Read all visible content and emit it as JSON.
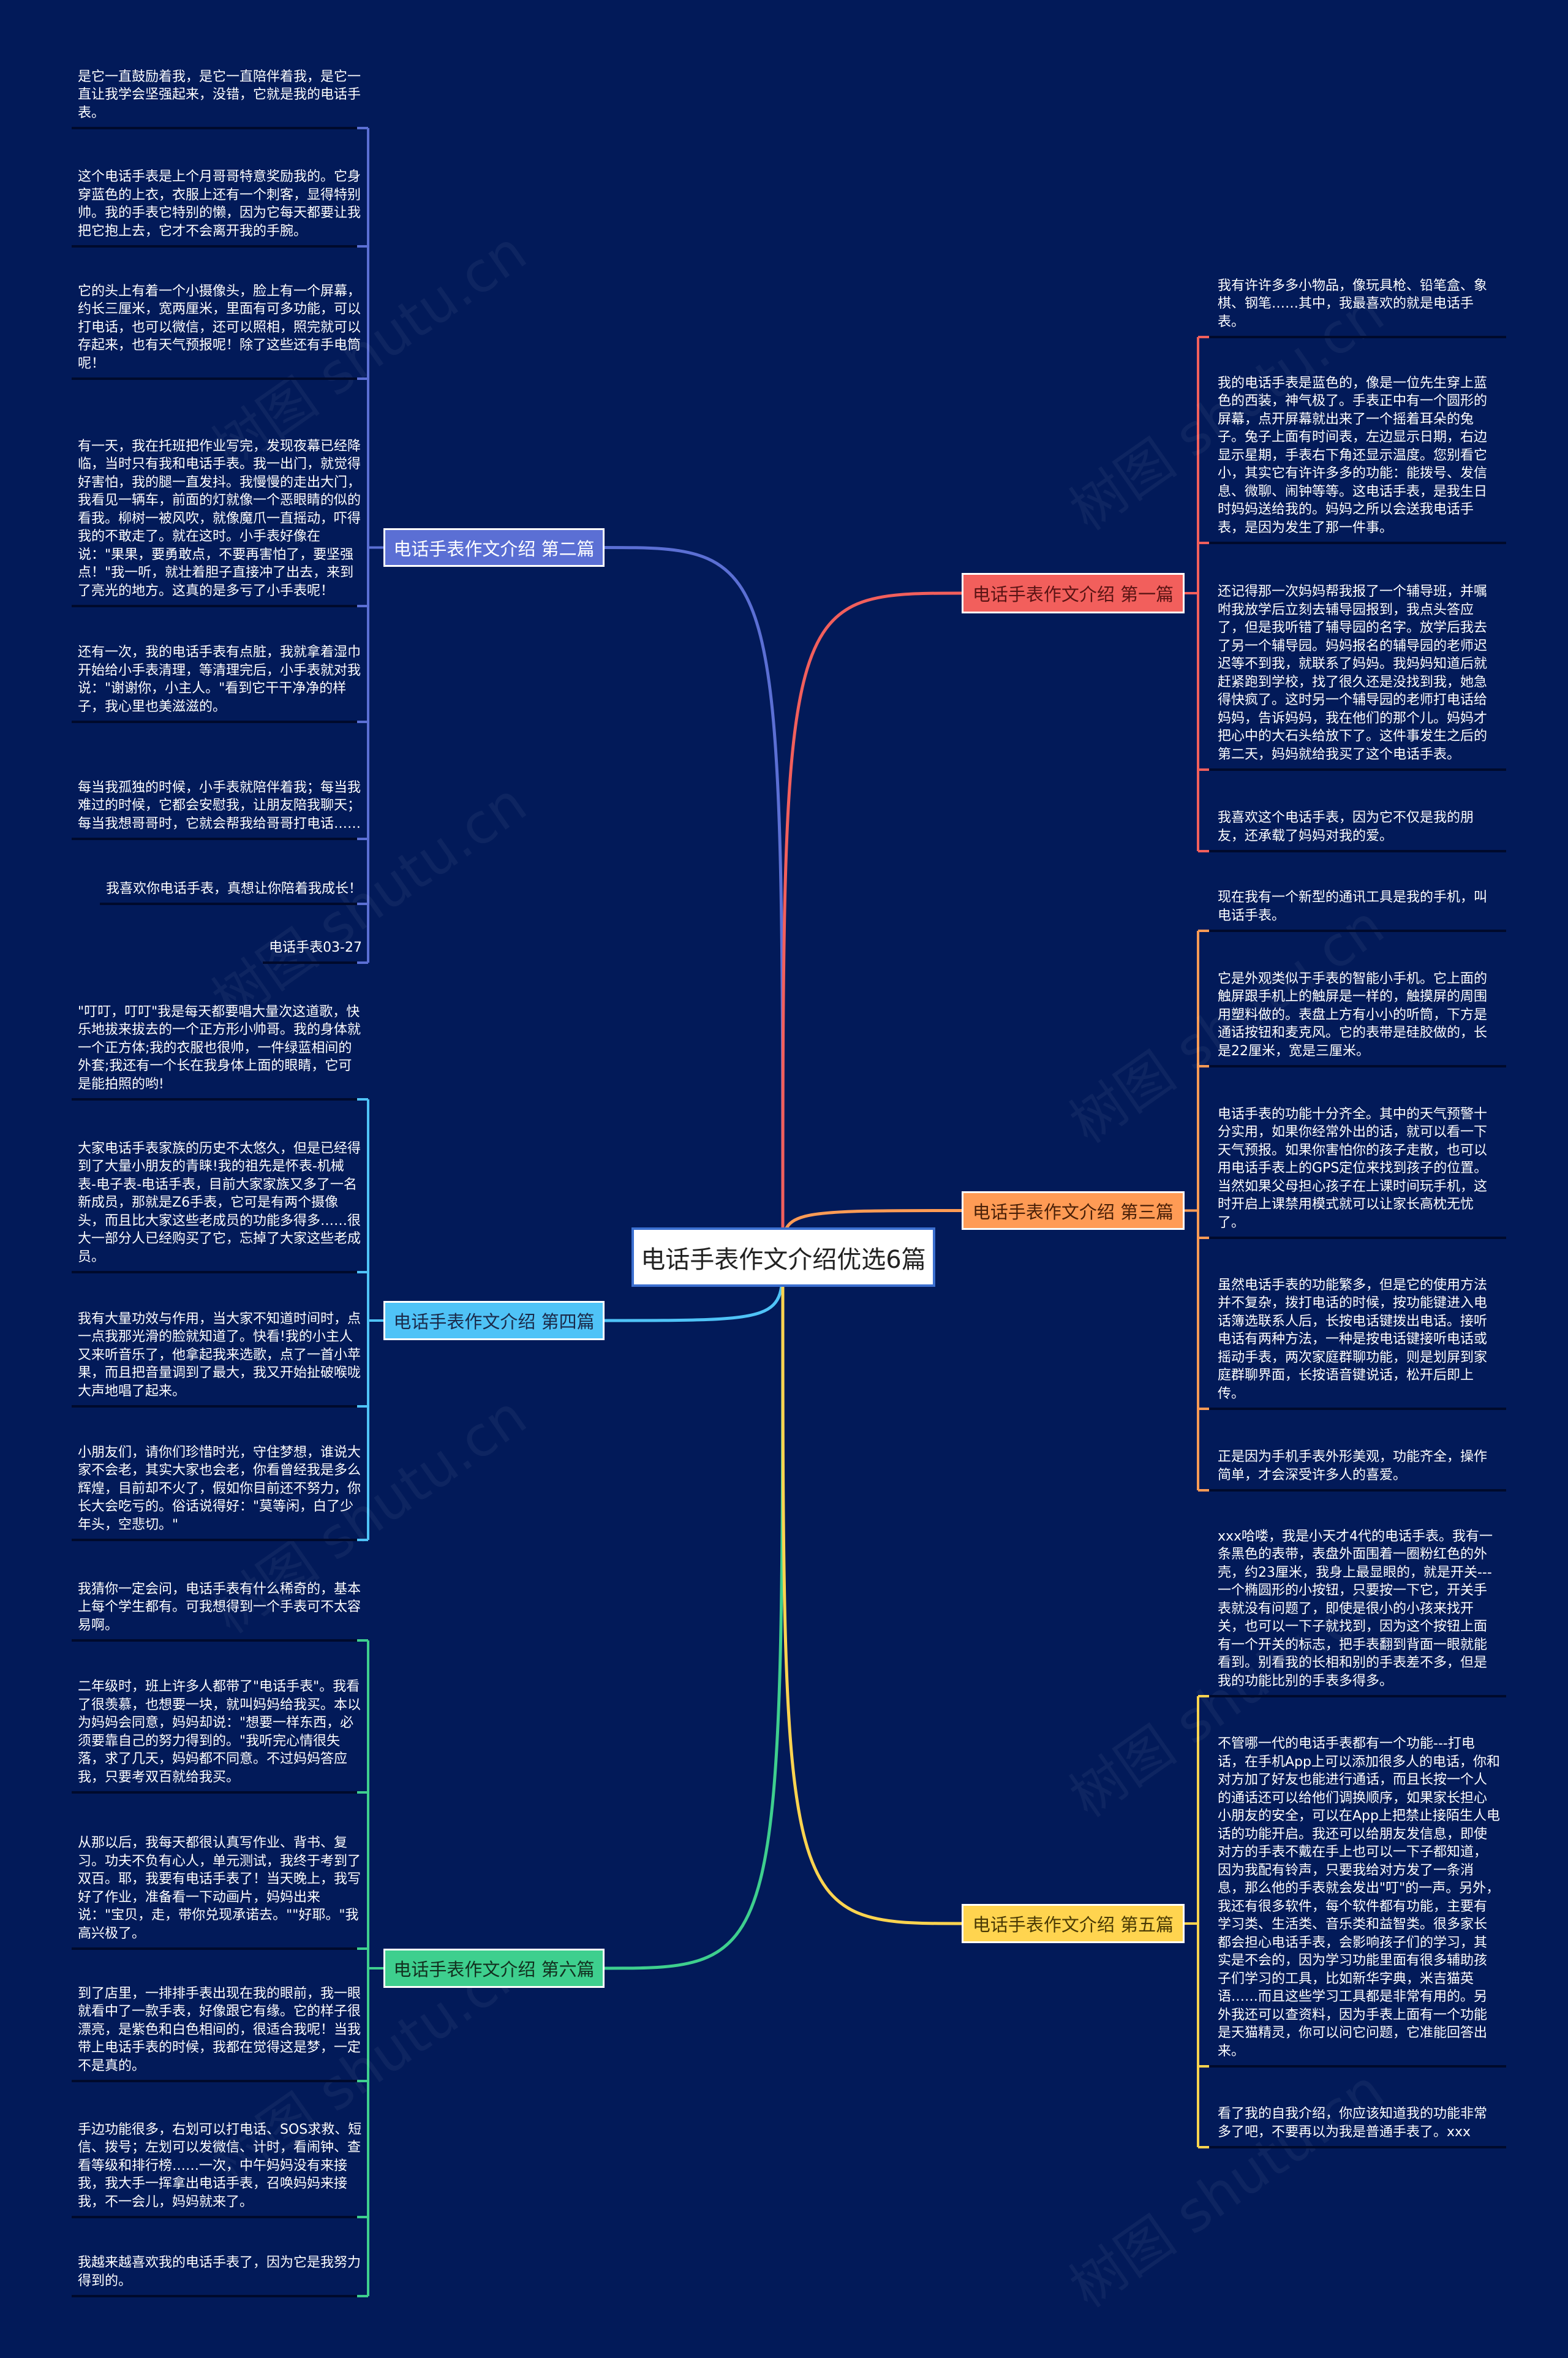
{
  "background_color": "#021a59",
  "watermark": "树图 shutu.cn",
  "center": {
    "title": "电话手表作文介绍优选6篇"
  },
  "branches": [
    {
      "id": "b2",
      "side": "left",
      "label": "电话手表作文介绍 第二篇",
      "color": "#5b6fd4",
      "text_color": "#ffffff",
      "leaves": [
        "是它一直鼓励着我，是它一直陪伴着我，是它一直让我学会坚强起来，没错，它就是我的电话手表。",
        "这个电话手表是上个月哥哥特意奖励我的。它身穿蓝色的上衣，衣服上还有一个刺客，显得特别帅。我的手表它特别的懒，因为它每天都要让我把它抱上去，它才不会离开我的手腕。",
        "它的头上有着一个小摄像头，脸上有一个屏幕，约长三厘米，宽两厘米，里面有可多功能，可以打电话，也可以微信，还可以照相，照完就可以存起来，也有天气预报呢！除了这些还有手电筒呢！",
        "有一天，我在托班把作业写完，发现夜幕已经降临，当时只有我和电话手表。我一出门，就觉得好害怕，我的腿一直发抖。我慢慢的走出大门，我看见一辆车，前面的灯就像一个恶眼睛的似的看我。柳树一被风吹，就像魔爪一直摇动，吓得我的不敢走了。就在这时。小手表好像在说：\"果果，要勇敢点，不要再害怕了，要坚强点！\"我一听，就壮着胆子直接冲了出去，来到了亮光的地方。这真的是多亏了小手表呢！",
        "还有一次，我的电话手表有点脏，我就拿着湿巾开始给小手表清理，等清理完后，小手表就对我说：\"谢谢你，小主人。\"看到它干干净净的样子，我心里也美滋滋的。",
        "每当我孤独的时候，小手表就陪伴着我；每当我难过的时候，它都会安慰我，让朋友陪我聊天；每当我想哥哥时，它就会帮我给哥哥打电话……",
        "我喜欢你电话手表，真想让你陪着我成长！",
        "电话手表03-27"
      ]
    },
    {
      "id": "b4",
      "side": "left",
      "label": "电话手表作文介绍 第四篇",
      "color": "#4fc3f7",
      "text_color": "#1a2a4a",
      "leaves": [
        "\"叮叮，叮叮\"我是每天都要唱大量次这道歌，快乐地拔来拔去的一个正方形小帅哥。我的身体就一个正方体;我的衣服也很帅，一件绿蓝相间的外套;我还有一个长在我身体上面的眼睛，它可是能拍照的哟!",
        "大家电话手表家族的历史不太悠久，但是已经得到了大量小朋友的青睐!我的祖先是怀表-机械表-电子表-电话手表，目前大家家族又多了一名新成员，那就是Z6手表，它可是有两个摄像头，而且比大家这些老成员的功能多得多……很大一部分人已经购买了它，忘掉了大家这些老成员。",
        "我有大量功效与作用，当大家不知道时间时，点一点我那光滑的脸就知道了。快看!我的小主人又来听音乐了，他拿起我来选歌，点了一首小苹果，而且把音量调到了最大，我又开始扯破喉咙大声地唱了起来。",
        "小朋友们，请你们珍惜时光，守住梦想，谁说大家不会老，其实大家也会老，你看曾经我是多么辉煌，目前却不火了，假如你目前还不努力，你长大会吃亏的。俗话说得好：\"莫等闲，白了少年头，空悲切。\""
      ]
    },
    {
      "id": "b6",
      "side": "left",
      "label": "电话手表作文介绍 第六篇",
      "color": "#3ecf8e",
      "text_color": "#12301f",
      "leaves": [
        "我猜你一定会问，电话手表有什么稀奇的，基本上每个学生都有。可我想得到一个手表可不太容易啊。",
        "二年级时，班上许多人都带了\"电话手表\"。我看了很羡慕，也想要一块，就叫妈妈给我买。本以为妈妈会同意，妈妈却说：\"想要一样东西，必须要靠自己的努力得到的。\"我听完心情很失落，求了几天，妈妈都不同意。不过妈妈答应我，只要考双百就给我买。",
        "从那以后，我每天都很认真写作业、背书、复习。功夫不负有心人，单元测试，我终于考到了双百。耶，我要有电话手表了！当天晚上，我写好了作业，准备看一下动画片，妈妈出来说：\"宝贝，走，带你兑现承诺去。\"\"好耶。\"我高兴极了。",
        "到了店里，一排排手表出现在我的眼前，我一眼就看中了一款手表，好像跟它有缘。它的样子很漂亮，是紫色和白色相间的，很适合我呢！当我带上电话手表的时候，我都在觉得这是梦，一定不是真的。",
        "手边功能很多，右划可以打电话、SOS求救、短信、拨号；左划可以发微信、计时，看闹钟、查看等级和排行榜……一次，中午妈妈没有来接我，我大手一挥拿出电话手表，召唤妈妈来接我，不一会儿，妈妈就来了。",
        "我越来越喜欢我的电话手表了，因为它是我努力得到的。"
      ]
    },
    {
      "id": "b1",
      "side": "right",
      "label": "电话手表作文介绍 第一篇",
      "color": "#f25f5c",
      "text_color": "#5a1414",
      "leaves": [
        "我有许许多多小物品，像玩具枪、铅笔盒、象棋、钢笔……其中，我最喜欢的就是电话手表。",
        "我的电话手表是蓝色的，像是一位先生穿上蓝色的西装，神气极了。手表正中有一个圆形的屏幕，点开屏幕就出来了一个摇着耳朵的兔子。兔子上面有时间表，左边显示日期，右边显示星期，手表右下角还显示温度。您别看它小，其实它有许许多多的功能：能拨号、发信息、微聊、闹钟等等。这电话手表，是我生日时妈妈送给我的。妈妈之所以会送我电话手表，是因为发生了那一件事。",
        "还记得那一次妈妈帮我报了一个辅导班，并嘱咐我放学后立刻去辅导园报到，我点头答应了，但是我听错了辅导园的名字。放学后我去了另一个辅导园。妈妈报名的辅导园的老师迟迟等不到我，就联系了妈妈。我妈妈知道后就赶紧跑到学校，找了很久还是没找到我，她急得快疯了。这时另一个辅导园的老师打电话给妈妈，告诉妈妈，我在他们的那个儿。妈妈才把心中的大石头给放下了。这件事发生之后的第二天，妈妈就给我买了这个电话手表。",
        "我喜欢这个电话手表，因为它不仅是我的朋友，还承载了妈妈对我的爱。"
      ]
    },
    {
      "id": "b3",
      "side": "right",
      "label": "电话手表作文介绍 第三篇",
      "color": "#ff9b55",
      "text_color": "#4a2008",
      "leaves": [
        "现在我有一个新型的通讯工具是我的手机，叫电话手表。",
        "它是外观类似于手表的智能小手机。它上面的触屏跟手机上的触屏是一样的，触摸屏的周围用塑料做的。表盘上方有小小的听筒，下方是通话按钮和麦克风。它的表带是硅胶做的，长是22厘米，宽是三厘米。",
        "电话手表的功能十分齐全。其中的天气预警十分实用，如果你经常外出的话，就可以看一下天气预报。如果你害怕你的孩子走散，也可以用电话手表上的GPS定位来找到孩子的位置。当然如果父母担心孩子在上课时间玩手机，这时开启上课禁用模式就可以让家长高枕无忧了。",
        "虽然电话手表的功能繁多，但是它的使用方法并不复杂，拨打电话的时候，按功能键进入电话簿选联系人后，长按电话键拨出电话。接听电话有两种方法，一种是按电话键接听电话或摇动手表，两次家庭群聊功能，则是划屏到家庭群聊界面，长按语音键说话，松开后即上传。",
        "正是因为手机手表外形美观，功能齐全，操作简单，才会深受许多人的喜爱。"
      ]
    },
    {
      "id": "b5",
      "side": "right",
      "label": "电话手表作文介绍 第五篇",
      "color": "#ffd44f",
      "text_color": "#4a3a05",
      "leaves": [
        "xxx哈喽，我是小天才4代的电话手表。我有一条黑色的表带，表盘外面围着一圈粉红色的外壳，约23厘米，我身上最显眼的，就是开关---一个椭圆形的小按钮，只要按一下它，开关手表就没有问题了，即使是很小的小孩来找开关，也可以一下子就找到，因为这个按钮上面有一个开关的标志，把手表翻到背面一眼就能看到。别看我的长相和别的手表差不多，但是我的功能比别的手表多得多。",
        "不管哪一代的电话手表都有一个功能---打电话，在手机App上可以添加很多人的电话，你和对方加了好友也能进行通话，而且长按一个人的通话还可以给他们调换顺序，如果家长担心小朋友的安全，可以在App上把禁止接陌生人电话的功能开启。我还可以给朋友发信息，即使对方的手表不戴在手上也可以一下子都知道，因为我配有铃声，只要我给对方发了一条消息，那么他的手表就会发出\"叮\"的一声。另外，我还有很多软件，每个软件都有功能，主要有学习类、生活类、音乐类和益智类。很多家长都会担心电话手表，会影响孩子们的学习，其实是不会的，因为学习功能里面有很多辅助孩子们学习的工具，比如新华字典，米吉猫英语……而且这些学习工具都是非常有用的。另外我还可以查资料，因为手表上面有一个功能是天猫精灵，你可以问它问题，它准能回答出来。",
        "看了我的自我介绍，你应该知道我的功能非常多了吧，不要再以为我是普通手表了。xxx"
      ]
    }
  ]
}
